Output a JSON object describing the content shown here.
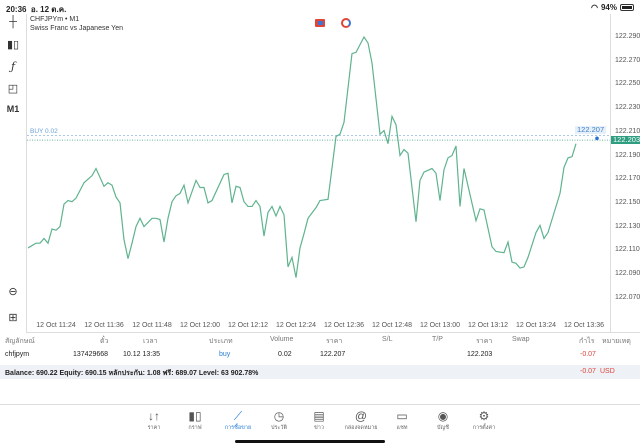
{
  "status": {
    "time": "20:36",
    "date": "อ. 12 ต.ค.",
    "battery": "94%",
    "battery_level": 0.94
  },
  "symbol": {
    "title": "CHFJPYm • M1",
    "description": "Swiss Franc vs Japanese Yen"
  },
  "toolbar": {
    "items": [
      {
        "icon": "crosshair-icon"
      },
      {
        "icon": "candles-icon"
      },
      {
        "icon": "function-icon"
      },
      {
        "icon": "shapes-icon"
      },
      {
        "label": "M1"
      }
    ],
    "bottom": [
      {
        "icon": "zoom-icon"
      },
      {
        "icon": "export-icon"
      }
    ]
  },
  "chart_data": {
    "type": "line",
    "title": "CHFJPYm • M1",
    "colors": {
      "line": "#5fb38e",
      "buy_line": "#8fb7de",
      "price_line": "#3a9e80",
      "price_tag": "#2e9d80"
    },
    "x_ticks": [
      "12 Oct 11:24",
      "12 Oct 11:36",
      "12 Oct 11:48",
      "12 Oct 12:00",
      "12 Oct 12:12",
      "12 Oct 12:24",
      "12 Oct 12:36",
      "12 Oct 12:48",
      "12 Oct 13:00",
      "12 Oct 13:12",
      "12 Oct 13:24",
      "12 Oct 13:36"
    ],
    "y_ticks": [
      "122.290",
      "122.270",
      "122.250",
      "122.230",
      "122.210",
      "122.190",
      "122.170",
      "122.150",
      "122.130",
      "122.110",
      "122.090",
      "122.070"
    ],
    "ylim": [
      122.043,
      122.309
    ],
    "grid": false,
    "buy_line": {
      "label": "BUY 0.02",
      "price": 122.207,
      "tag": "122.207"
    },
    "current_price": {
      "price": 122.203,
      "tag": "122.203"
    },
    "x": [
      "11:17",
      "11:19",
      "11:20",
      "11:21",
      "11:22",
      "11:23",
      "11:24",
      "11:25",
      "11:26",
      "11:27",
      "11:28",
      "11:29",
      "11:31",
      "11:33",
      "11:34",
      "11:36",
      "11:37",
      "11:38",
      "11:39",
      "11:40",
      "11:41",
      "11:42",
      "11:43",
      "11:44",
      "11:45",
      "11:46",
      "11:48",
      "11:49",
      "11:50",
      "11:51",
      "11:52",
      "11:53",
      "11:54",
      "11:55",
      "11:56",
      "11:57",
      "11:59",
      "12:00",
      "12:01",
      "12:02",
      "12:03",
      "12:06",
      "12:07",
      "12:08",
      "12:09",
      "12:10",
      "12:11",
      "12:12",
      "12:13",
      "12:14",
      "12:15",
      "12:16",
      "12:17",
      "12:18",
      "12:19",
      "12:20",
      "12:21",
      "12:22",
      "12:23",
      "12:24",
      "12:25",
      "12:26",
      "12:27",
      "12:29",
      "12:30",
      "12:32",
      "12:34",
      "12:35",
      "12:36",
      "12:38",
      "12:39",
      "12:41",
      "12:42",
      "12:43",
      "12:45",
      "12:46",
      "12:47",
      "12:48",
      "12:49",
      "12:50",
      "12:51",
      "12:52",
      "12:54",
      "12:55",
      "12:56",
      "12:58",
      "12:59",
      "13:00",
      "13:01",
      "13:02",
      "13:03",
      "13:04",
      "13:05",
      "13:06",
      "13:09",
      "13:10",
      "13:11",
      "13:13",
      "13:14",
      "13:16",
      "13:17",
      "13:18",
      "13:19",
      "13:20",
      "13:21",
      "13:22",
      "13:24",
      "13:25",
      "13:26",
      "13:27",
      "13:30",
      "13:31",
      "13:32",
      "13:33",
      "13:34"
    ],
    "y": [
      122.112,
      122.116,
      122.116,
      122.12,
      122.116,
      122.128,
      122.127,
      122.13,
      122.149,
      122.152,
      122.151,
      122.154,
      122.167,
      122.173,
      122.179,
      122.164,
      122.167,
      122.165,
      122.155,
      122.15,
      122.119,
      122.103,
      122.116,
      122.13,
      122.137,
      122.13,
      122.137,
      122.137,
      122.136,
      122.117,
      122.137,
      122.151,
      122.156,
      122.158,
      122.165,
      122.15,
      122.169,
      122.163,
      122.163,
      122.15,
      122.152,
      122.174,
      122.175,
      122.15,
      122.164,
      122.163,
      122.151,
      122.147,
      122.147,
      122.152,
      122.147,
      122.122,
      122.142,
      122.147,
      122.139,
      122.147,
      122.14,
      122.096,
      122.104,
      122.087,
      122.112,
      122.124,
      122.137,
      122.146,
      122.152,
      122.153,
      122.206,
      122.208,
      122.218,
      122.276,
      122.277,
      122.29,
      122.285,
      122.268,
      122.208,
      122.211,
      122.2,
      122.223,
      122.216,
      122.19,
      122.195,
      122.192,
      122.134,
      122.169,
      122.176,
      122.179,
      122.175,
      122.152,
      122.178,
      122.188,
      122.19,
      122.198,
      122.147,
      122.179,
      122.135,
      122.145,
      122.144,
      122.113,
      122.109,
      122.108,
      122.117,
      122.1,
      122.099,
      122.095,
      122.096,
      122.104,
      122.125,
      122.131,
      122.12,
      122.125,
      122.158,
      122.18,
      122.188,
      122.189,
      122.2
    ]
  },
  "table": {
    "headers": [
      "สัญลักษณ์",
      "ตั๋ว",
      "เวลา",
      "ประเภท",
      "Volume",
      "ราคา",
      "S/L",
      "T/P",
      "ราคา",
      "Swap",
      "กำไร",
      "หมายเหตุ"
    ],
    "rows": [
      {
        "symbol": "chfjpym",
        "ticket": "137429668",
        "time": "10.12 13:35",
        "type": "buy",
        "volume": "0.02",
        "open_price": "122.207",
        "sl": "",
        "tp": "",
        "price": "122.203",
        "swap": "",
        "profit": "-0.07",
        "comment": ""
      }
    ]
  },
  "balance": {
    "text": "Balance: 690.22 Equity: 690.15 หลักประกัน: 1.08 ฟรี: 689.07 Level: 63 902.78%",
    "profit": "-0.07",
    "currency": "USD",
    "profit_color": "#e0453a"
  },
  "nav": [
    {
      "label": "ราคา",
      "icon": "arrows-updown-icon"
    },
    {
      "label": "กราฟ",
      "icon": "candles-icon"
    },
    {
      "label": "การซื้อขาย",
      "icon": "trade-chart-icon",
      "active": true
    },
    {
      "label": "ประวัติ",
      "icon": "history-icon"
    },
    {
      "label": "ข่าว",
      "icon": "news-icon"
    },
    {
      "label": "กล่องจดหมาย",
      "icon": "mail-at-icon"
    },
    {
      "label": "แชท",
      "icon": "chat-icon"
    },
    {
      "label": "บัญชี",
      "icon": "account-icon"
    },
    {
      "label": "การตั้งค่า",
      "icon": "settings-icon"
    }
  ]
}
